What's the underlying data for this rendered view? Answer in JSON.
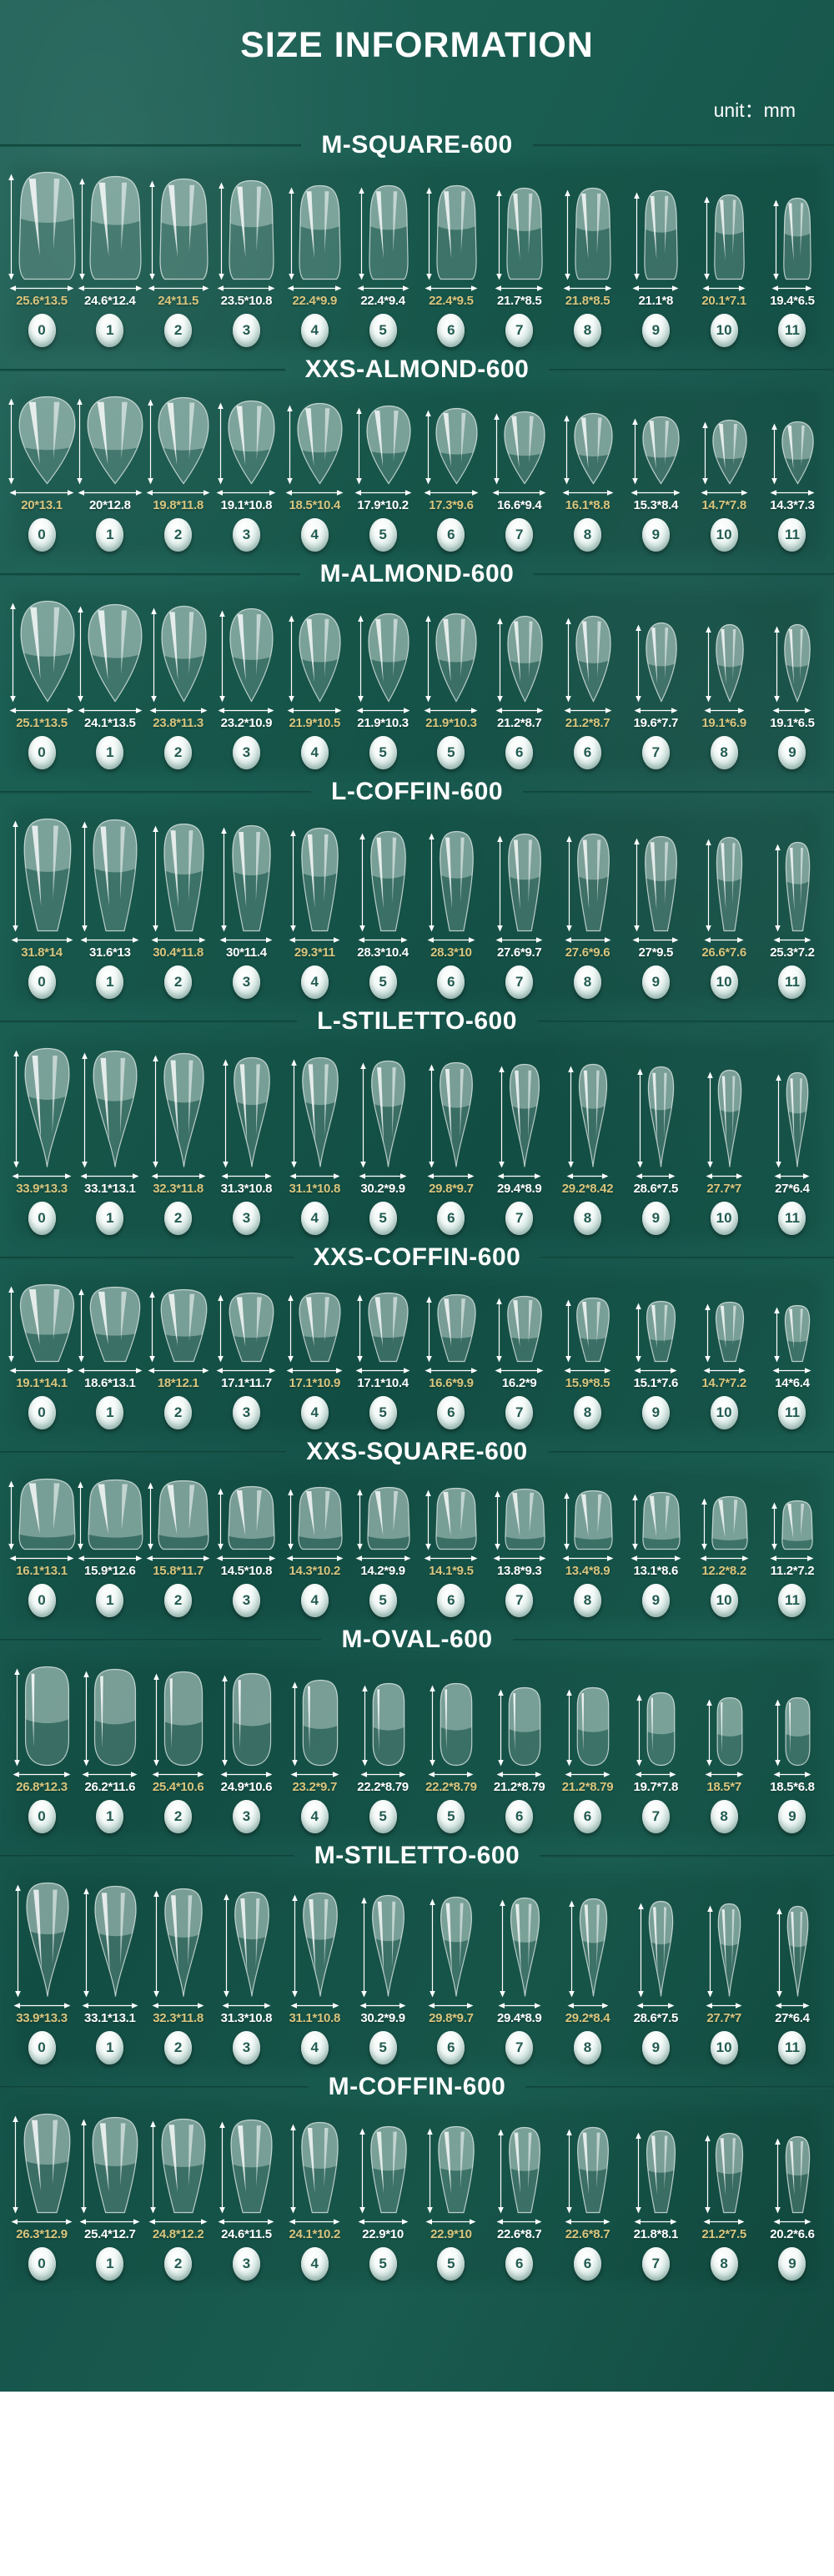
{
  "title": "SIZE INFORMATION",
  "unit_label": "unit：mm",
  "colors": {
    "background": "#175a4e",
    "label_yellow": "#d8c57e",
    "label_white": "#ffffff",
    "number_teal": "#235c52",
    "header_text": "#ffffff",
    "header_line": "#0d4036"
  },
  "sections": [
    {
      "name": "M-SQUARE-600",
      "shape": "square",
      "sizes": [
        "25.6*13.5",
        "24.6*12.4",
        "24*11.5",
        "23.5*10.8",
        "22.4*9.9",
        "22.4*9.4",
        "22.4*9.5",
        "21.7*8.5",
        "21.8*8.5",
        "21.1*8",
        "20.1*7.1",
        "19.4*6.5"
      ],
      "numbers": [
        "0",
        "1",
        "2",
        "3",
        "4",
        "5",
        "6",
        "7",
        "8",
        "9",
        "10",
        "11"
      ]
    },
    {
      "name": "XXS-ALMOND-600",
      "shape": "almond",
      "sizes": [
        "20*13.1",
        "20*12.8",
        "19.8*11.8",
        "19.1*10.8",
        "18.5*10.4",
        "17.9*10.2",
        "17.3*9.6",
        "16.6*9.4",
        "16.1*8.8",
        "15.3*8.4",
        "14.7*7.8",
        "14.3*7.3"
      ],
      "numbers": [
        "0",
        "1",
        "2",
        "3",
        "4",
        "5",
        "6",
        "7",
        "8",
        "9",
        "10",
        "11"
      ]
    },
    {
      "name": "M-ALMOND-600",
      "shape": "almond",
      "sizes": [
        "25.1*13.5",
        "24.1*13.5",
        "23.8*11.3",
        "23.2*10.9",
        "21.9*10.5",
        "21.9*10.3",
        "21.9*10.3",
        "21.2*8.7",
        "21.2*8.7",
        "19.6*7.7",
        "19.1*6.9",
        "19.1*6.5"
      ],
      "numbers": [
        "0",
        "1",
        "2",
        "3",
        "4",
        "5",
        "5",
        "6",
        "6",
        "7",
        "8",
        "9"
      ]
    },
    {
      "name": "L-COFFIN-600",
      "shape": "coffin",
      "sizes": [
        "31.8*14",
        "31.6*13",
        "30.4*11.8",
        "30*11.4",
        "29.3*11",
        "28.3*10.4",
        "28.3*10",
        "27.6*9.7",
        "27.6*9.6",
        "27*9.5",
        "26.6*7.6",
        "25.3*7.2"
      ],
      "numbers": [
        "0",
        "1",
        "2",
        "3",
        "4",
        "5",
        "6",
        "7",
        "8",
        "9",
        "10",
        "11"
      ]
    },
    {
      "name": "L-STILETTO-600",
      "shape": "stiletto",
      "sizes": [
        "33.9*13.3",
        "33.1*13.1",
        "32.3*11.8",
        "31.3*10.8",
        "31.1*10.8",
        "30.2*9.9",
        "29.8*9.7",
        "29.4*8.9",
        "29.2*8.42",
        "28.6*7.5",
        "27.7*7",
        "27*6.4"
      ],
      "numbers": [
        "0",
        "1",
        "2",
        "3",
        "4",
        "5",
        "6",
        "7",
        "8",
        "9",
        "10",
        "11"
      ]
    },
    {
      "name": "XXS-COFFIN-600",
      "shape": "coffin",
      "sizes": [
        "19.1*14.1",
        "18.6*13.1",
        "18*12.1",
        "17.1*11.7",
        "17.1*10.9",
        "17.1*10.4",
        "16.6*9.9",
        "16.2*9",
        "15.9*8.5",
        "15.1*7.6",
        "14.7*7.2",
        "14*6.4"
      ],
      "numbers": [
        "0",
        "1",
        "2",
        "3",
        "4",
        "5",
        "6",
        "7",
        "8",
        "9",
        "10",
        "11"
      ]
    },
    {
      "name": "XXS-SQUARE-600",
      "shape": "square",
      "sizes": [
        "16.1*13.1",
        "15.9*12.6",
        "15.8*11.7",
        "14.5*10.8",
        "14.3*10.2",
        "14.2*9.9",
        "14.1*9.5",
        "13.8*9.3",
        "13.4*8.9",
        "13.1*8.6",
        "12.2*8.2",
        "11.2*7.2"
      ],
      "numbers": [
        "0",
        "1",
        "2",
        "3",
        "4",
        "5",
        "6",
        "7",
        "8",
        "9",
        "10",
        "11"
      ]
    },
    {
      "name": "M-OVAL-600",
      "shape": "oval",
      "sizes": [
        "26.8*12.3",
        "26.2*11.6",
        "25.4*10.6",
        "24.9*10.6",
        "23.2*9.7",
        "22.2*8.79",
        "22.2*8.79",
        "21.2*8.79",
        "21.2*8.79",
        "19.7*7.8",
        "18.5*7",
        "18.5*6.8"
      ],
      "numbers": [
        "0",
        "1",
        "2",
        "3",
        "4",
        "5",
        "5",
        "6",
        "6",
        "7",
        "8",
        "9"
      ]
    },
    {
      "name": "M-STILETTO-600",
      "shape": "stiletto",
      "sizes": [
        "33.9*13.3",
        "33.1*13.1",
        "32.3*11.8",
        "31.3*10.8",
        "31.1*10.8",
        "30.2*9.9",
        "29.8*9.7",
        "29.4*8.9",
        "29.2*8.4",
        "28.6*7.5",
        "27.7*7",
        "27*6.4"
      ],
      "numbers": [
        "0",
        "1",
        "2",
        "3",
        "4",
        "5",
        "6",
        "7",
        "8",
        "9",
        "10",
        "11"
      ]
    },
    {
      "name": "M-COFFIN-600",
      "shape": "coffin",
      "sizes": [
        "26.3*12.9",
        "25.4*12.7",
        "24.8*12.2",
        "24.6*11.5",
        "24.1*10.2",
        "22.9*10",
        "22.9*10",
        "22.6*8.7",
        "22.6*8.7",
        "21.8*8.1",
        "21.2*7.5",
        "20.2*6.6"
      ],
      "numbers": [
        "0",
        "1",
        "2",
        "3",
        "4",
        "5",
        "5",
        "6",
        "6",
        "7",
        "8",
        "9"
      ]
    }
  ]
}
